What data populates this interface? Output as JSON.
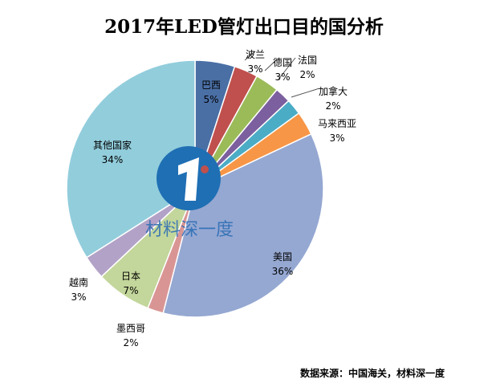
{
  "chart_data": {
    "type": "pie",
    "title": "2017年LED管灯出口目的国分析",
    "slices": [
      {
        "label": "巴西",
        "value": 5,
        "display": "5%",
        "color": "#4a6fa5"
      },
      {
        "label": "波兰",
        "value": 3,
        "display": "3%",
        "color": "#c0504d"
      },
      {
        "label": "德国",
        "value": 3,
        "display": "3%",
        "color": "#9bbb59"
      },
      {
        "label": "法国",
        "value": 2,
        "display": "2%",
        "color": "#7c5f9e"
      },
      {
        "label": "加拿大",
        "value": 2,
        "display": "2%",
        "color": "#4bacc6"
      },
      {
        "label": "马来西亚",
        "value": 3,
        "display": "3%",
        "color": "#f79646"
      },
      {
        "label": "美国",
        "value": 36,
        "display": "36%",
        "color": "#95a8d2"
      },
      {
        "label": "墨西哥",
        "value": 2,
        "display": "2%",
        "color": "#d99594"
      },
      {
        "label": "日本",
        "value": 7,
        "display": "7%",
        "color": "#c3d69b"
      },
      {
        "label": "越南",
        "value": 3,
        "display": "3%",
        "color": "#b3a2c7"
      },
      {
        "label": "其他国家",
        "value": 34,
        "display": "34%",
        "color": "#92cddc"
      }
    ]
  },
  "watermark": "材料深一度",
  "source": "数据来源：中国海关，材料深一度"
}
